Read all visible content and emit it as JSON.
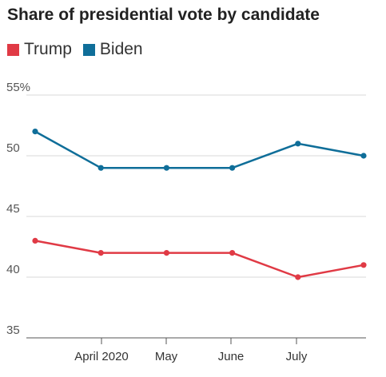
{
  "chart_data": {
    "type": "line",
    "title": "Share of presidential vote by candidate",
    "xlabel": "",
    "ylabel": "",
    "x_tick_labels": [
      "April 2020",
      "May",
      "June",
      "July"
    ],
    "y_ticks": [
      "55%",
      "50",
      "45",
      "40",
      "35"
    ],
    "ylim": [
      35,
      55
    ],
    "grid": true,
    "legend_position": "top-left",
    "series": [
      {
        "name": "Trump",
        "color": "#e03a45",
        "values": [
          43,
          42,
          42,
          42,
          40,
          41
        ]
      },
      {
        "name": "Biden",
        "color": "#0f6e99",
        "values": [
          52,
          49,
          49,
          49,
          51,
          50
        ]
      }
    ]
  }
}
